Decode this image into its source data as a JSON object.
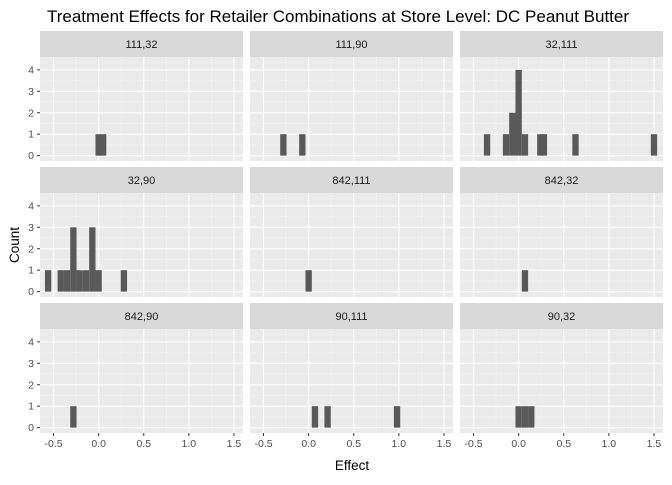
{
  "chart_data": {
    "type": "bar",
    "title": "Treatment Effects for Retailer Combinations at Store Level: DC Peanut Butter",
    "xlabel": "Effect",
    "ylabel": "Count",
    "xlim": [
      -0.65,
      1.6
    ],
    "ylim": [
      -0.25,
      4.6
    ],
    "x_ticks": [
      -0.5,
      0.0,
      0.5,
      1.0,
      1.5
    ],
    "x_tick_labels": [
      "-0.5",
      "0.0",
      "0.5",
      "1.0",
      "1.5"
    ],
    "y_ticks": [
      0,
      1,
      2,
      3,
      4
    ],
    "y_tick_labels": [
      "0",
      "1",
      "2",
      "3",
      "4"
    ],
    "bin_width": 0.07,
    "grid": true,
    "bar_color": "#595959",
    "panel_background": "#ebebeb",
    "strip_background": "#d9d9d9",
    "panels": [
      {
        "label": "111,32",
        "bins": [
          {
            "x": 0.0,
            "count": 1
          },
          {
            "x": 0.05,
            "count": 1
          }
        ]
      },
      {
        "label": "111,90",
        "bins": [
          {
            "x": -0.28,
            "count": 1
          },
          {
            "x": -0.07,
            "count": 1
          }
        ]
      },
      {
        "label": "32,111",
        "bins": [
          {
            "x": -0.35,
            "count": 1
          },
          {
            "x": -0.14,
            "count": 1
          },
          {
            "x": -0.07,
            "count": 2
          },
          {
            "x": 0.0,
            "count": 4
          },
          {
            "x": 0.07,
            "count": 1
          },
          {
            "x": 0.24,
            "count": 1
          },
          {
            "x": 0.28,
            "count": 1
          },
          {
            "x": 0.63,
            "count": 1
          },
          {
            "x": 1.5,
            "count": 1
          }
        ]
      },
      {
        "label": "32,90",
        "bins": [
          {
            "x": -0.56,
            "count": 1
          },
          {
            "x": -0.42,
            "count": 1
          },
          {
            "x": -0.35,
            "count": 1
          },
          {
            "x": -0.28,
            "count": 3
          },
          {
            "x": -0.21,
            "count": 1
          },
          {
            "x": -0.14,
            "count": 1
          },
          {
            "x": -0.07,
            "count": 3
          },
          {
            "x": 0.0,
            "count": 1
          },
          {
            "x": 0.28,
            "count": 1
          }
        ]
      },
      {
        "label": "842,111",
        "bins": [
          {
            "x": 0.0,
            "count": 1
          }
        ]
      },
      {
        "label": "842,32",
        "bins": [
          {
            "x": 0.07,
            "count": 1
          }
        ]
      },
      {
        "label": "842,90",
        "bins": [
          {
            "x": -0.28,
            "count": 1
          }
        ]
      },
      {
        "label": "90,111",
        "bins": [
          {
            "x": 0.07,
            "count": 1
          },
          {
            "x": 0.21,
            "count": 1
          },
          {
            "x": 0.98,
            "count": 1
          }
        ]
      },
      {
        "label": "90,32",
        "bins": [
          {
            "x": 0.0,
            "count": 1
          },
          {
            "x": 0.07,
            "count": 1
          },
          {
            "x": 0.14,
            "count": 1
          }
        ]
      }
    ]
  }
}
